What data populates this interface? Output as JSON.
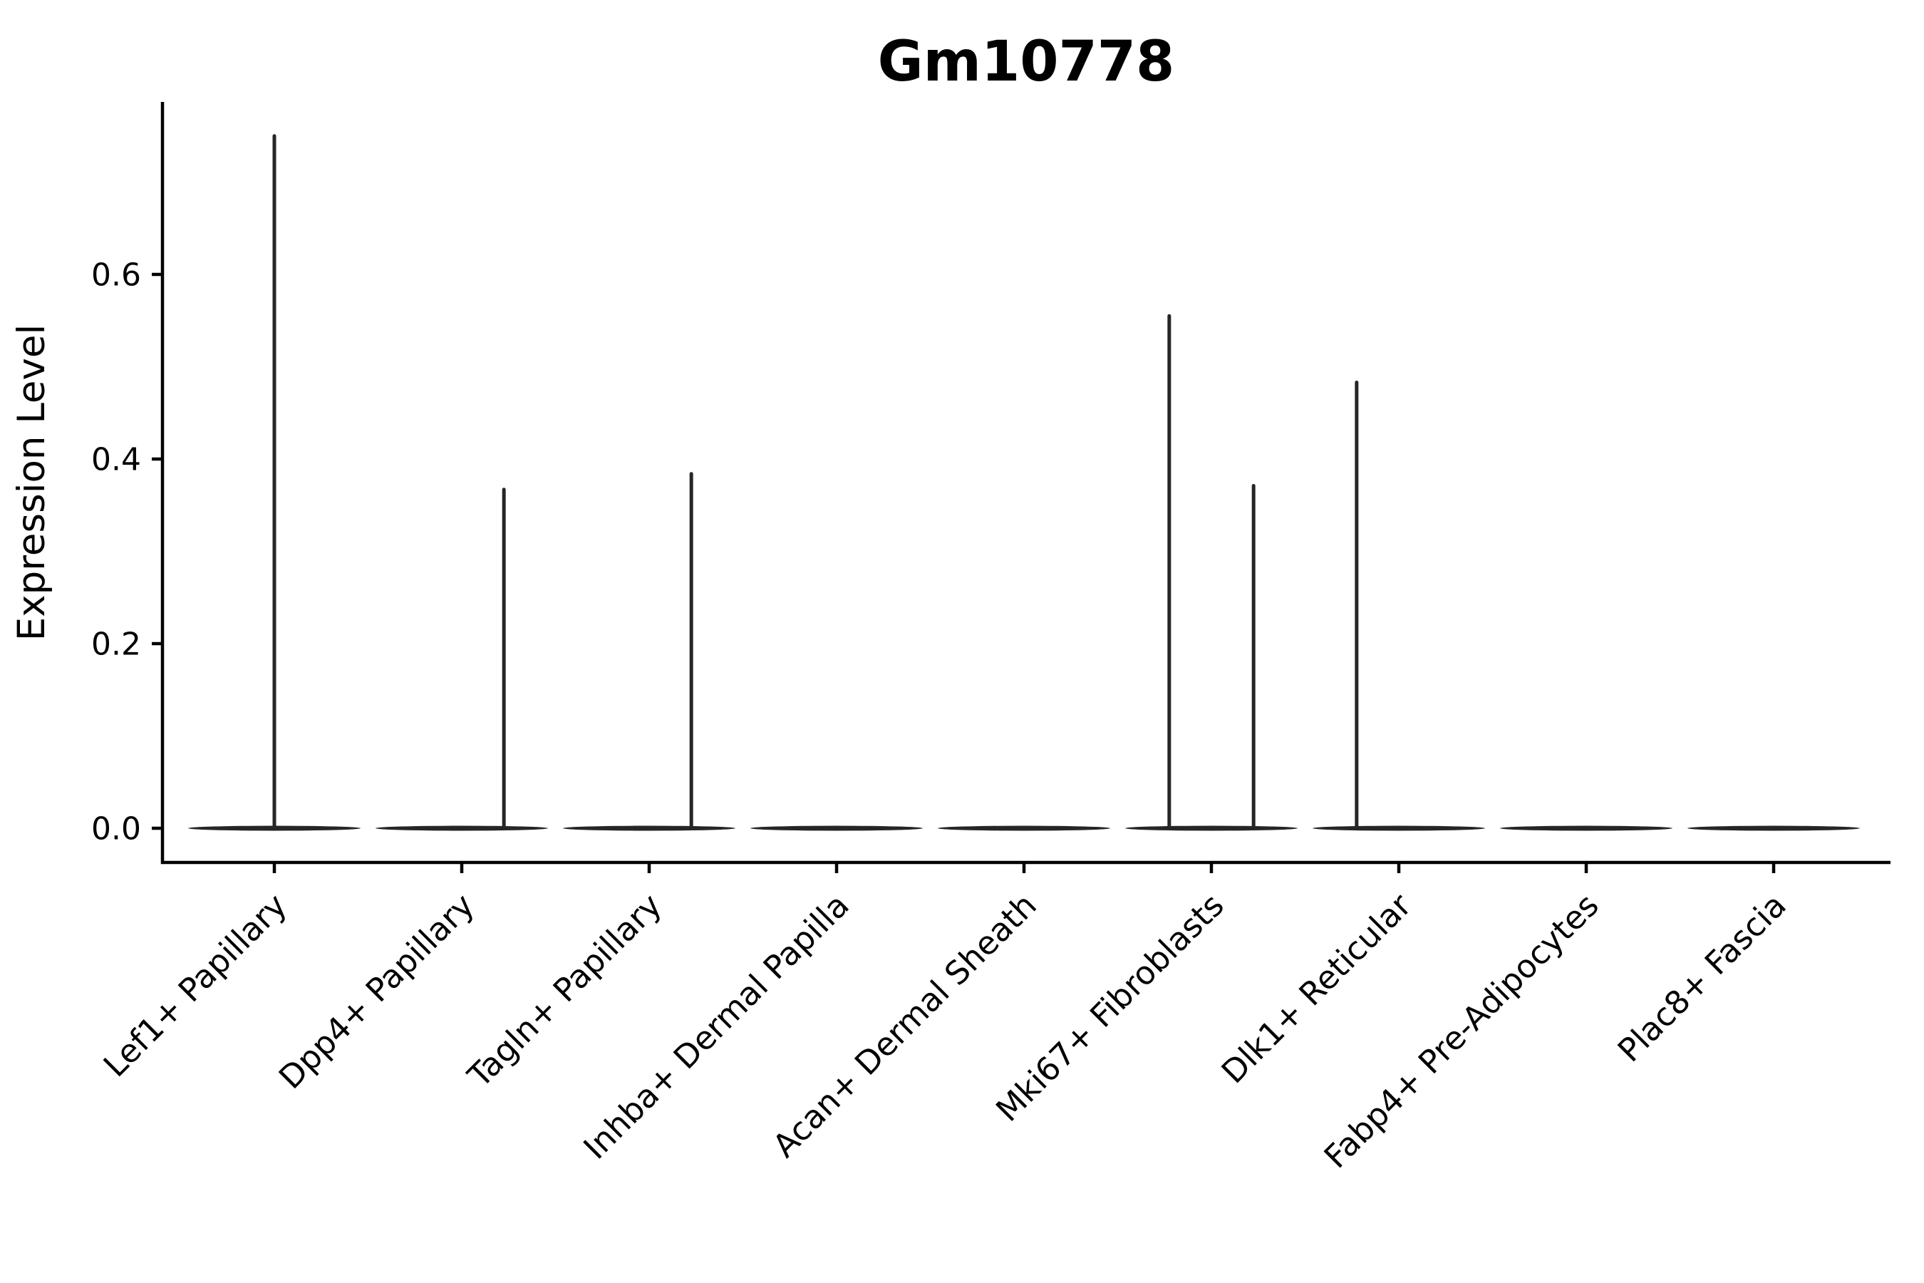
{
  "figure": {
    "background": "#ffffff"
  },
  "chart_data": {
    "type": "violin",
    "title": "Gm10778",
    "xlabel": "",
    "ylabel": "Expression Level",
    "yticks": [
      0.0,
      0.2,
      0.4,
      0.6
    ],
    "ytick_labels": [
      "0.0",
      "0.2",
      "0.4",
      "0.6"
    ],
    "ylim": [
      -0.037,
      0.787
    ],
    "grid": false,
    "legend": "none",
    "categories": [
      "Lef1+ Papillary",
      "Dpp4+ Papillary",
      "Tagln+ Papillary",
      "Inhba+ Dermal Papilla",
      "Acan+ Dermal Sheath",
      "Mki67+ Fibroblasts",
      "Dlk1+ Reticular",
      "Fabp4+ Pre-Adipocytes",
      "Plac8+ Fascia"
    ],
    "violins": [
      {
        "category": "Lef1+ Papillary",
        "baseline_value": 0.0,
        "spikes": [
          {
            "offset": 0.0,
            "value": 0.75
          }
        ]
      },
      {
        "category": "Dpp4+ Papillary",
        "baseline_value": 0.0,
        "spikes": [
          {
            "offset": 0.225,
            "value": 0.367
          }
        ]
      },
      {
        "category": "Tagln+ Papillary",
        "baseline_value": 0.0,
        "spikes": [
          {
            "offset": 0.225,
            "value": 0.384
          }
        ]
      },
      {
        "category": "Inhba+ Dermal Papilla",
        "baseline_value": 0.0,
        "spikes": []
      },
      {
        "category": "Acan+ Dermal Sheath",
        "baseline_value": 0.0,
        "spikes": []
      },
      {
        "category": "Mki67+ Fibroblasts",
        "baseline_value": 0.0,
        "spikes": [
          {
            "offset": -0.225,
            "value": 0.555
          },
          {
            "offset": 0.225,
            "value": 0.371
          }
        ]
      },
      {
        "category": "Dlk1+ Reticular",
        "baseline_value": 0.0,
        "spikes": [
          {
            "offset": -0.225,
            "value": 0.483
          }
        ]
      },
      {
        "category": "Fabp4+ Pre-Adipocytes",
        "baseline_value": 0.0,
        "spikes": []
      },
      {
        "category": "Plac8+ Fascia",
        "baseline_value": 0.0,
        "spikes": []
      }
    ],
    "violin_halfwidth_frac": 0.46,
    "colors": {
      "violin": "#262626",
      "axis": "#000000",
      "text": "#000000",
      "background": "#ffffff"
    }
  }
}
